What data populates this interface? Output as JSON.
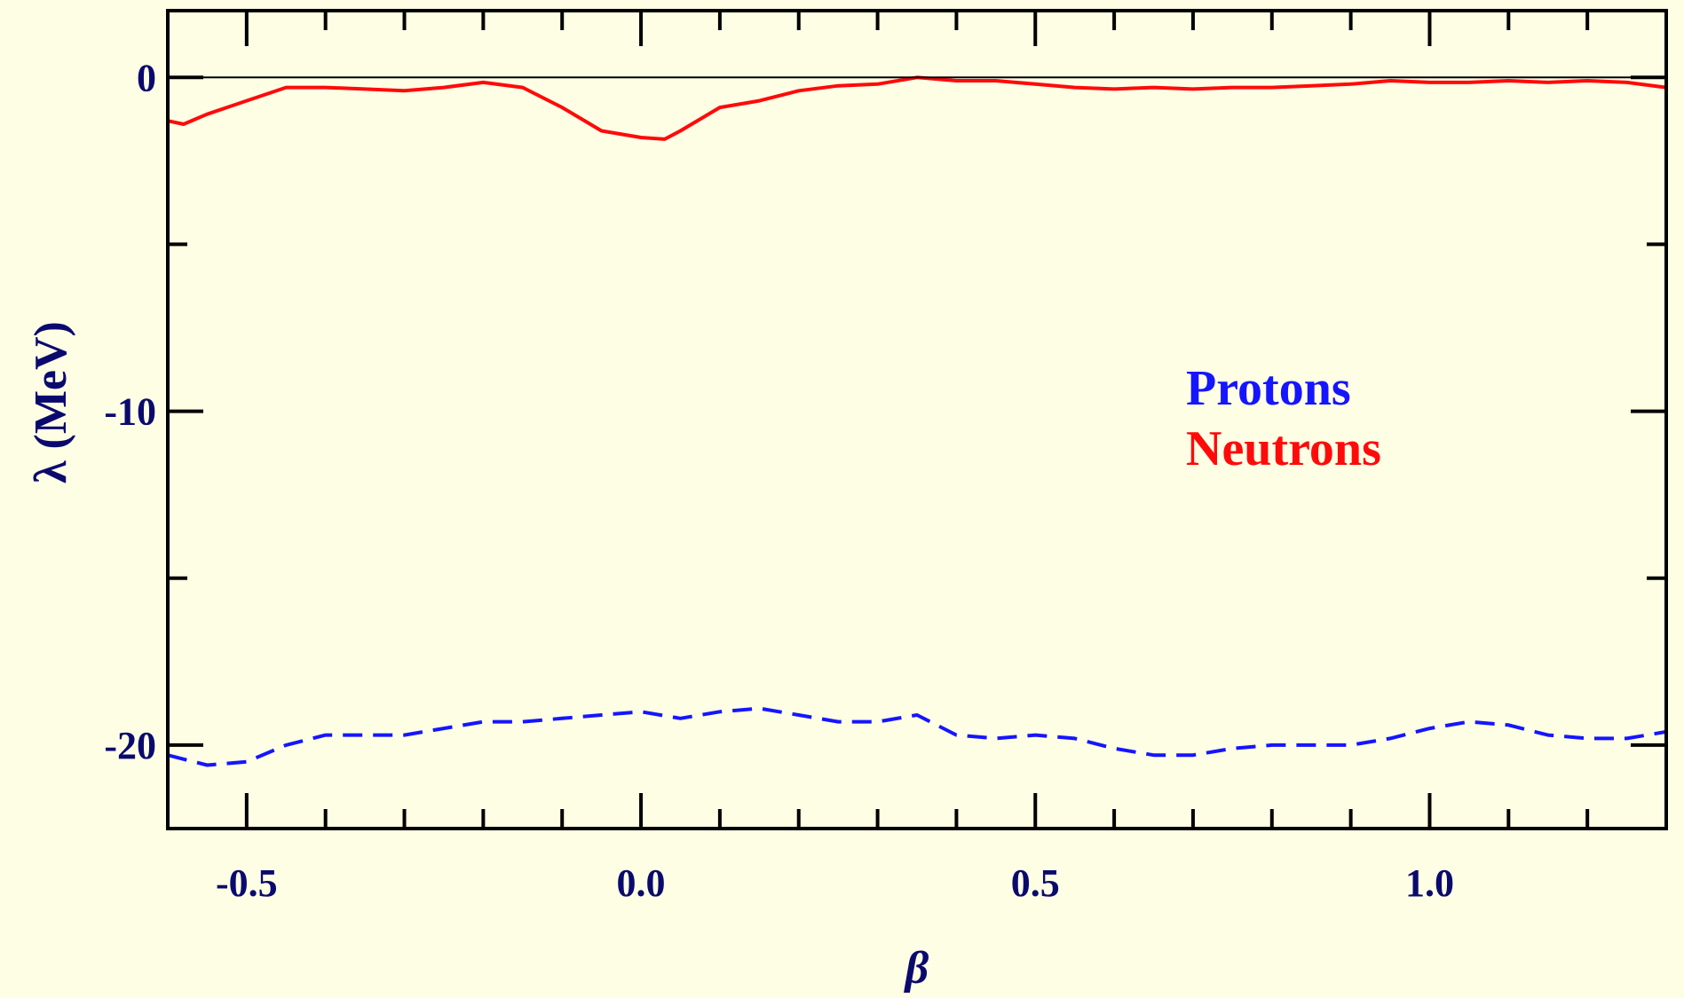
{
  "chart_data": {
    "type": "line",
    "title": "",
    "xlabel": "β",
    "ylabel": "λ (MeV)",
    "xlim": [
      -0.6,
      1.3
    ],
    "ylim": [
      -22.5,
      2.0
    ],
    "x_ticks": [
      -0.5,
      0.0,
      0.5,
      1.0
    ],
    "x_tick_labels": [
      "-0.5",
      "0.0",
      "0.5",
      "1.0"
    ],
    "y_ticks": [
      0,
      -10,
      -20
    ],
    "y_tick_labels": [
      "0",
      "-10",
      "-20"
    ],
    "x_minor_step": 0.1,
    "y_minor_step": 5,
    "zero_line": true,
    "grid": false,
    "legend_position": "center-right",
    "colors": {
      "axis": "#0a0a6e",
      "frame": "#000000",
      "background": "#fefee4"
    },
    "series": [
      {
        "name": "Protons",
        "color": "#1515ff",
        "style": "dashed",
        "x": [
          -0.6,
          -0.55,
          -0.5,
          -0.45,
          -0.4,
          -0.35,
          -0.3,
          -0.25,
          -0.2,
          -0.15,
          -0.1,
          -0.05,
          0.0,
          0.05,
          0.1,
          0.15,
          0.2,
          0.25,
          0.3,
          0.35,
          0.4,
          0.45,
          0.5,
          0.55,
          0.6,
          0.65,
          0.7,
          0.75,
          0.8,
          0.85,
          0.9,
          0.95,
          1.0,
          1.05,
          1.1,
          1.15,
          1.2,
          1.25,
          1.3
        ],
        "values": [
          -20.3,
          -20.6,
          -20.5,
          -20.0,
          -19.7,
          -19.7,
          -19.7,
          -19.5,
          -19.3,
          -19.3,
          -19.2,
          -19.1,
          -19.0,
          -19.2,
          -19.0,
          -18.9,
          -19.1,
          -19.3,
          -19.3,
          -19.1,
          -19.7,
          -19.8,
          -19.7,
          -19.8,
          -20.1,
          -20.3,
          -20.3,
          -20.1,
          -20.0,
          -20.0,
          -20.0,
          -19.8,
          -19.5,
          -19.3,
          -19.4,
          -19.7,
          -19.8,
          -19.8,
          -19.6
        ]
      },
      {
        "name": "Neutrons",
        "color": "#ff0a0a",
        "style": "solid",
        "x": [
          -0.6,
          -0.58,
          -0.55,
          -0.5,
          -0.45,
          -0.4,
          -0.35,
          -0.3,
          -0.25,
          -0.2,
          -0.15,
          -0.1,
          -0.05,
          0.0,
          0.03,
          0.05,
          0.1,
          0.15,
          0.2,
          0.25,
          0.3,
          0.35,
          0.4,
          0.45,
          0.5,
          0.55,
          0.6,
          0.65,
          0.7,
          0.75,
          0.8,
          0.85,
          0.9,
          0.95,
          1.0,
          1.05,
          1.1,
          1.15,
          1.2,
          1.25,
          1.3
        ],
        "values": [
          -1.3,
          -1.4,
          -1.1,
          -0.7,
          -0.3,
          -0.3,
          -0.35,
          -0.4,
          -0.3,
          -0.15,
          -0.3,
          -0.9,
          -1.6,
          -1.8,
          -1.85,
          -1.6,
          -0.9,
          -0.7,
          -0.4,
          -0.25,
          -0.2,
          0.0,
          -0.1,
          -0.1,
          -0.2,
          -0.3,
          -0.35,
          -0.3,
          -0.35,
          -0.3,
          -0.3,
          -0.25,
          -0.2,
          -0.1,
          -0.15,
          -0.15,
          -0.1,
          -0.15,
          -0.1,
          -0.15,
          -0.3
        ]
      }
    ]
  }
}
